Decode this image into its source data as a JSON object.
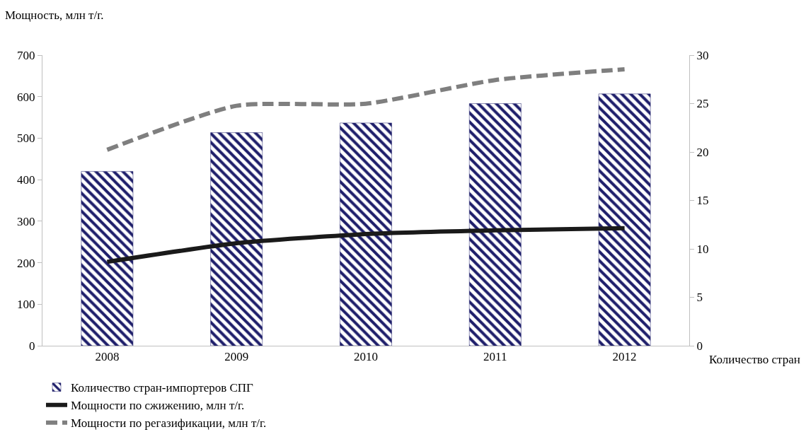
{
  "chart_data": {
    "type": "bar",
    "ylabel": "Мощность, млн т/г.",
    "y2label": "Количество стран",
    "categories": [
      "2008",
      "2009",
      "2010",
      "2011",
      "2012"
    ],
    "series": [
      {
        "name": "Количество стран-импортеров СПГ",
        "color": "#1f1f6b",
        "axis": "y2",
        "values": [
          18,
          22,
          23,
          25,
          26
        ]
      },
      {
        "name": "Мощности по сжижению, млн т/г.",
        "type": "line",
        "line_style": "solid",
        "color": "#1a1a1a",
        "values": [
          202,
          247,
          269,
          278,
          283
        ]
      },
      {
        "name": "Мощности по регазификации, млн т/г.",
        "type": "line",
        "line_style": "dashed",
        "color": "#7f7f7f",
        "values": [
          472,
          578,
          583,
          640,
          666
        ]
      }
    ],
    "ylim": [
      0,
      700
    ],
    "yticks": [
      0,
      100,
      200,
      300,
      400,
      500,
      600,
      700
    ],
    "y2lim": [
      0,
      30
    ],
    "y2ticks": [
      0,
      5,
      10,
      15,
      20,
      25,
      30
    ],
    "grid": false,
    "legend": "bottom",
    "marker": "none"
  }
}
